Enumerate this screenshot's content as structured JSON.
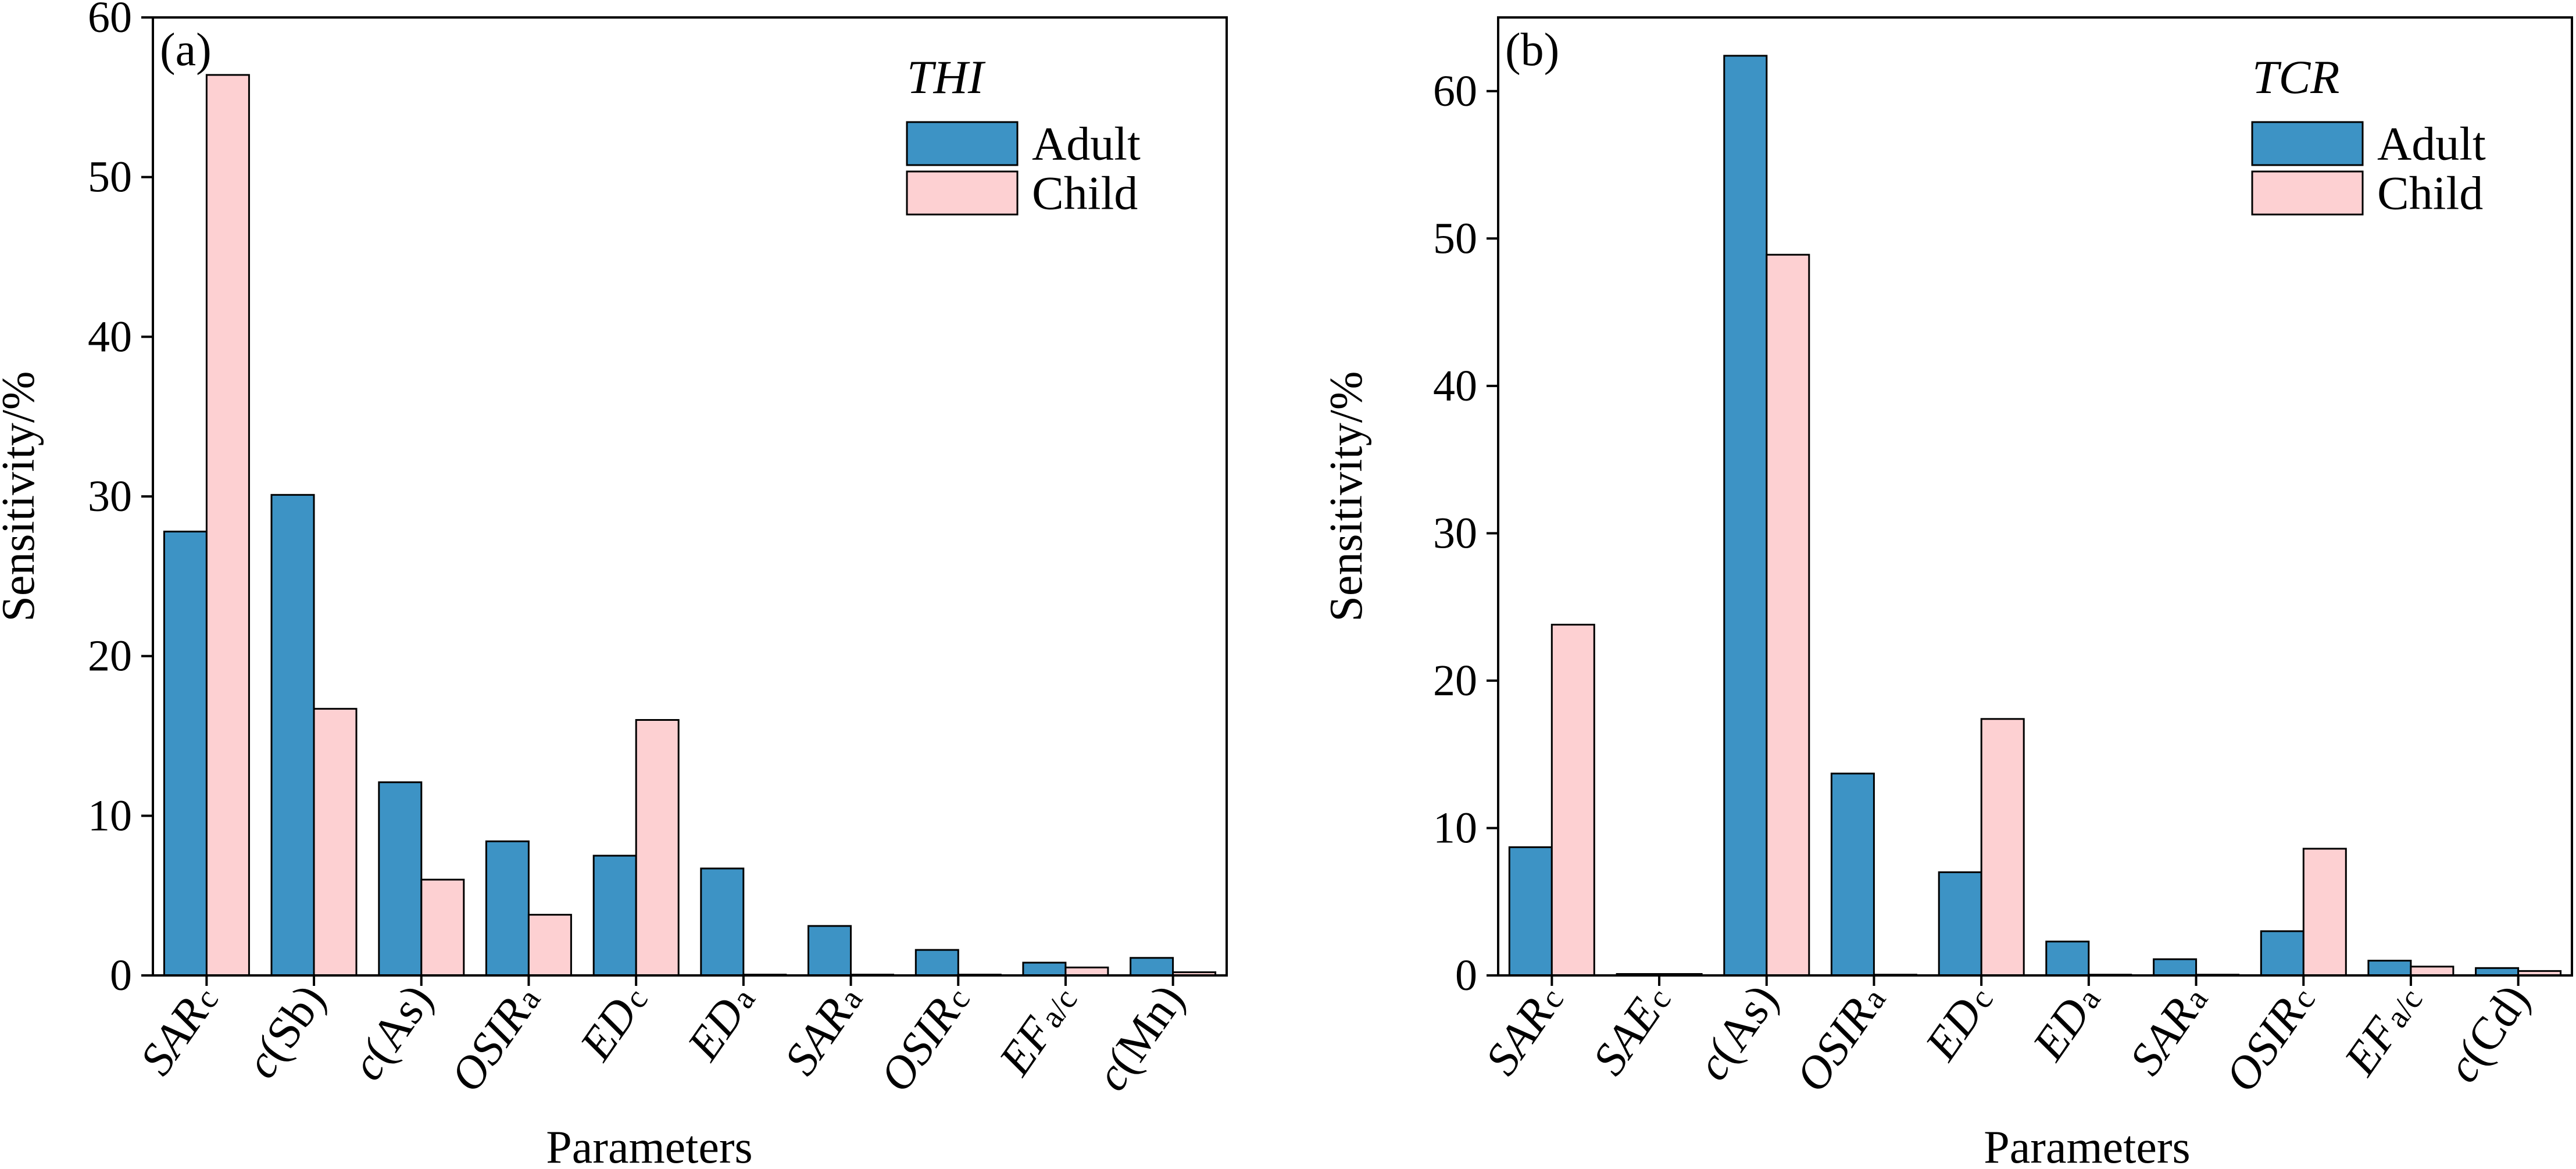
{
  "colors": {
    "adult": "#3d93c5",
    "child": "#fdd0d2",
    "axis": "#000000"
  },
  "chart_data": [
    {
      "type": "bar",
      "panel_label": "(a)",
      "legend_title": "THI",
      "legend_placement": "top-right",
      "xlabel": "Parameters",
      "ylabel": "Sensitivity/%",
      "ylim": [
        0,
        60
      ],
      "yticks": [
        0,
        10,
        20,
        30,
        40,
        50,
        60
      ],
      "categories": [
        {
          "main": "SAR",
          "sub": "c",
          "full": "SARc"
        },
        {
          "main": "c",
          "rest": "(Sb)",
          "full": "c(Sb)"
        },
        {
          "main": "c",
          "rest": "(As)",
          "full": "c(As)"
        },
        {
          "main": "OSIR",
          "sub": "a",
          "full": "OSIRa"
        },
        {
          "main": "ED",
          "sub": "c",
          "full": "EDc"
        },
        {
          "main": "ED",
          "sub": "a",
          "full": "EDa"
        },
        {
          "main": "SAR",
          "sub": "a",
          "full": "SARa"
        },
        {
          "main": "OSIR",
          "sub": "c",
          "full": "OSIRc"
        },
        {
          "main": "EF",
          "sub": "a/c",
          "full": "EFa/c"
        },
        {
          "main": "c",
          "rest": "(Mn)",
          "full": "c(Mn)"
        }
      ],
      "series": [
        {
          "name": "Adult",
          "values": [
            27.8,
            30.1,
            12.1,
            8.4,
            7.5,
            6.7,
            3.1,
            1.6,
            0.8,
            1.1
          ]
        },
        {
          "name": "Child",
          "values": [
            56.4,
            16.7,
            6.0,
            3.8,
            16.0,
            0.05,
            0.05,
            0.05,
            0.5,
            0.2
          ]
        }
      ]
    },
    {
      "type": "bar",
      "panel_label": "(b)",
      "legend_title": "TCR",
      "legend_placement": "top-right",
      "xlabel": "Parameters",
      "ylabel": "Sensitivity/%",
      "ylim": [
        0,
        65
      ],
      "yticks": [
        0,
        10,
        20,
        30,
        40,
        50,
        60
      ],
      "categories": [
        {
          "main": "SAR",
          "sub": "c",
          "full": "SARc"
        },
        {
          "main": "SAE",
          "sub": "c",
          "full": "SAEc"
        },
        {
          "main": "c",
          "rest": "(As)",
          "full": "c(As)"
        },
        {
          "main": "OSIR",
          "sub": "a",
          "full": "OSIRa"
        },
        {
          "main": "ED",
          "sub": "c",
          "full": "EDc"
        },
        {
          "main": "ED",
          "sub": "a",
          "full": "EDa"
        },
        {
          "main": "SAR",
          "sub": "a",
          "full": "SARa"
        },
        {
          "main": "OSIR",
          "sub": "c",
          "full": "OSIRc"
        },
        {
          "main": "EF",
          "sub": "a/c",
          "full": "EFa/c"
        },
        {
          "main": "c",
          "rest": "(Cd)",
          "full": "c(Cd)"
        }
      ],
      "series": [
        {
          "name": "Adult",
          "values": [
            8.7,
            0.1,
            62.4,
            13.7,
            7.0,
            2.3,
            1.1,
            3.0,
            1.0,
            0.5
          ]
        },
        {
          "name": "Child",
          "values": [
            23.8,
            0.1,
            48.9,
            0.05,
            17.4,
            0.05,
            0.05,
            8.6,
            0.6,
            0.3
          ]
        }
      ]
    }
  ]
}
